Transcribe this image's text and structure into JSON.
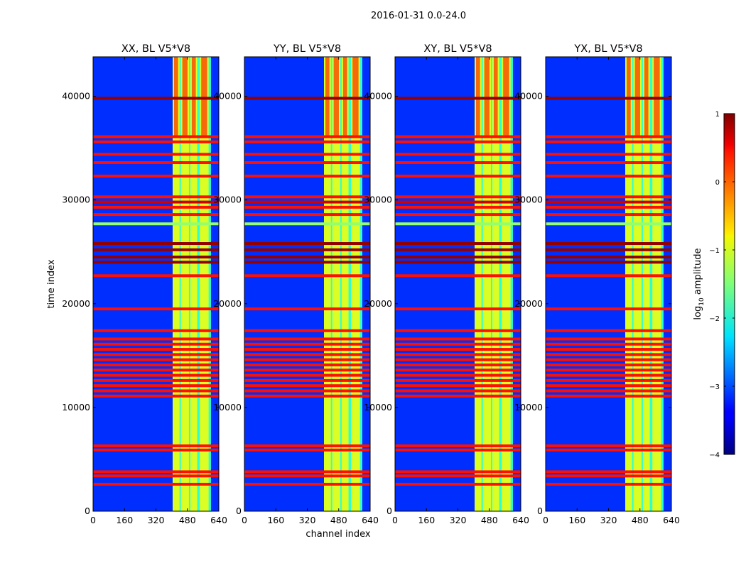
{
  "figure": {
    "suptitle": "2016-01-31 0.0-24.0",
    "xlabel": "channel index",
    "ylabel": "time index"
  },
  "chart_data": {
    "type": "heatmap",
    "panels": [
      {
        "title": "XX, BL V5*V8"
      },
      {
        "title": "YY, BL V5*V8"
      },
      {
        "title": "XY, BL V5*V8"
      },
      {
        "title": "YX, BL V5*V8"
      }
    ],
    "x_range": [
      0,
      640
    ],
    "y_range": [
      0,
      43800
    ],
    "x_ticks": [
      0,
      160,
      320,
      480,
      640
    ],
    "x_tick_labels": [
      "0",
      "160",
      "320",
      "480",
      "640"
    ],
    "y_ticks": [
      0,
      10000,
      20000,
      30000,
      40000
    ],
    "y_tick_labels": [
      "0",
      "10000",
      "20000",
      "30000",
      "40000"
    ],
    "colorbar": {
      "label_base": "log",
      "label_sub": "10",
      "label_rest": " amplitude",
      "range": [
        -4,
        1
      ],
      "ticks": [
        1,
        0,
        -1,
        -2,
        -3,
        -4
      ],
      "tick_labels": [
        "1",
        "0",
        "−1",
        "−2",
        "−3",
        "−4"
      ],
      "colormap": "jet"
    },
    "bright_channel_band": [
      405,
      600
    ],
    "bright_columns": [
      {
        "x0": 405,
        "x1": 440
      },
      {
        "x0": 447,
        "x1": 488
      },
      {
        "x0": 495,
        "x1": 530
      },
      {
        "x0": 543,
        "x1": 588
      }
    ],
    "red_patches_rows": [
      36000,
      43800
    ],
    "flagged_rows": [
      {
        "t": 2600,
        "value": 0.3
      },
      {
        "t": 3400,
        "value": 0.3
      },
      {
        "t": 3800,
        "value": 0.3
      },
      {
        "t": 5900,
        "value": 0.3
      },
      {
        "t": 6300,
        "value": 0.3
      },
      {
        "t": 11100,
        "value": 0.3
      },
      {
        "t": 11600,
        "value": 0.3
      },
      {
        "t": 12100,
        "value": 0.3
      },
      {
        "t": 12600,
        "value": 0.3
      },
      {
        "t": 13100,
        "value": 0.3
      },
      {
        "t": 13600,
        "value": 0.3
      },
      {
        "t": 14100,
        "value": 0.3
      },
      {
        "t": 14600,
        "value": 0.3
      },
      {
        "t": 15100,
        "value": 0.3
      },
      {
        "t": 15600,
        "value": 0.3
      },
      {
        "t": 16100,
        "value": 0.3
      },
      {
        "t": 16600,
        "value": 0.3
      },
      {
        "t": 17400,
        "value": 0.3
      },
      {
        "t": 19500,
        "value": 0.3
      },
      {
        "t": 22700,
        "value": 0.3
      },
      {
        "t": 24000,
        "value": 0.9
      },
      {
        "t": 24500,
        "value": 0.9
      },
      {
        "t": 25200,
        "value": 0.9
      },
      {
        "t": 25800,
        "value": 0.9
      },
      {
        "t": 27700,
        "value": -1.4
      },
      {
        "t": 28600,
        "value": 0.3
      },
      {
        "t": 29300,
        "value": 0.3
      },
      {
        "t": 29800,
        "value": 0.6
      },
      {
        "t": 30300,
        "value": 0.3
      },
      {
        "t": 32300,
        "value": 0.3
      },
      {
        "t": 33600,
        "value": 0.3
      },
      {
        "t": 34400,
        "value": 0.3
      },
      {
        "t": 35600,
        "value": 0.3
      },
      {
        "t": 36100,
        "value": 0.3
      },
      {
        "t": 39800,
        "value": 0.9
      }
    ]
  }
}
